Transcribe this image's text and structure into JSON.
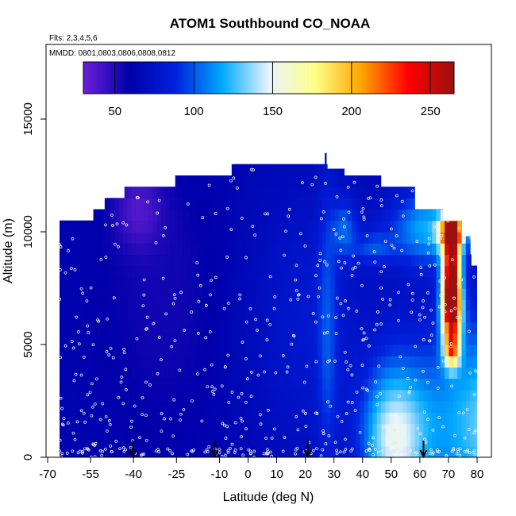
{
  "chart_data": {
    "type": "heatmap",
    "title": "ATOM1 Southbound CO_NOAA",
    "flights_text": "Flts: 2,3,4,5,6",
    "dates_text": "MMDD: 0801,0803,0806,0808,0812",
    "xlabel": "Latitude (deg N)",
    "ylabel": "Altitude (m)",
    "xlim": [
      -70,
      85
    ],
    "ylim": [
      0,
      18000
    ],
    "x_ticks": [
      -70,
      -55,
      -40,
      -25,
      -10,
      0,
      10,
      20,
      30,
      40,
      50,
      60,
      70,
      80
    ],
    "x_tick_labels": [
      "-70",
      "-55",
      "-40",
      "-25",
      "-10",
      "0",
      "10",
      "20",
      "30",
      "40",
      "50",
      "60",
      "70",
      "80"
    ],
    "y_ticks": [
      0,
      5000,
      10000,
      15000
    ],
    "y_tick_labels": [
      "0",
      "5000",
      "10000",
      "15000"
    ],
    "colorbar": {
      "min": 30,
      "max": 265,
      "ticks": [
        50,
        100,
        150,
        200,
        250
      ],
      "tick_labels": [
        "50",
        "100",
        "150",
        "200",
        "250"
      ],
      "colors": [
        "#6a1fd6",
        "#0000aa",
        "#0022dd",
        "#00aaff",
        "#e8f4ff",
        "#ffff88",
        "#ffa500",
        "#ff0000",
        "#9b1010"
      ]
    },
    "profile_markers_lat": [
      -42,
      -13,
      20,
      61
    ],
    "data_extent": {
      "x_range": [
        -68,
        80
      ],
      "y_range": [
        0,
        13500
      ]
    },
    "grid": false,
    "legend_placement": "top"
  }
}
